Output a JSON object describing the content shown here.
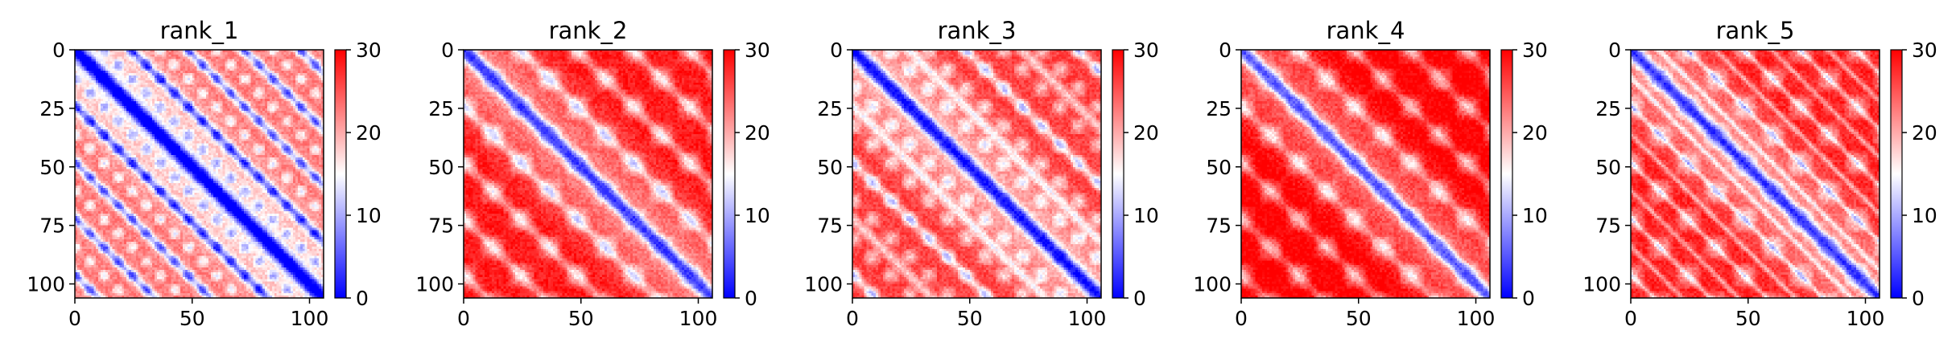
{
  "chart_data": [
    {
      "type": "heatmap",
      "title": "rank_1",
      "xticks": [
        0,
        50,
        100
      ],
      "yticks": [
        0,
        25,
        50,
        75,
        100
      ],
      "xlim": [
        0,
        106
      ],
      "ylim": [
        106,
        0
      ],
      "grid_size": 106,
      "colormap": "bwr",
      "colorbar": {
        "min": 0,
        "max": 30,
        "ticks": [
          0,
          10,
          20,
          30
        ]
      },
      "pattern": {
        "band_period": 24,
        "band_strength": 0.85,
        "blob_period": 12,
        "base_level": 0.5
      }
    },
    {
      "type": "heatmap",
      "title": "rank_2",
      "xticks": [
        0,
        50,
        100
      ],
      "yticks": [
        0,
        25,
        50,
        75,
        100
      ],
      "xlim": [
        0,
        106
      ],
      "ylim": [
        106,
        0
      ],
      "grid_size": 106,
      "colormap": "bwr",
      "colorbar": {
        "min": 0,
        "max": 30,
        "ticks": [
          0,
          10,
          20,
          30
        ]
      },
      "pattern": {
        "band_period": 24,
        "band_strength": 0.45,
        "blob_period": 24,
        "base_level": 0.7
      }
    },
    {
      "type": "heatmap",
      "title": "rank_3",
      "xticks": [
        0,
        50,
        100
      ],
      "yticks": [
        0,
        25,
        50,
        75,
        100
      ],
      "xlim": [
        0,
        106
      ],
      "ylim": [
        106,
        0
      ],
      "grid_size": 106,
      "colormap": "bwr",
      "colorbar": {
        "min": 0,
        "max": 30,
        "ticks": [
          0,
          10,
          20,
          30
        ]
      },
      "pattern": {
        "band_period": 24,
        "band_strength": 0.6,
        "blob_period": 16,
        "base_level": 0.62
      }
    },
    {
      "type": "heatmap",
      "title": "rank_4",
      "xticks": [
        0,
        50,
        100
      ],
      "yticks": [
        0,
        25,
        50,
        75,
        100
      ],
      "xlim": [
        0,
        106
      ],
      "ylim": [
        106,
        0
      ],
      "grid_size": 106,
      "colormap": "bwr",
      "colorbar": {
        "min": 0,
        "max": 30,
        "ticks": [
          0,
          10,
          20,
          30
        ]
      },
      "pattern": {
        "band_period": 24,
        "band_strength": 0.35,
        "blob_period": 24,
        "base_level": 0.76
      }
    },
    {
      "type": "heatmap",
      "title": "rank_5",
      "xticks": [
        0,
        50,
        100
      ],
      "yticks": [
        0,
        25,
        50,
        75,
        100
      ],
      "xlim": [
        0,
        106
      ],
      "ylim": [
        106,
        0
      ],
      "grid_size": 106,
      "colormap": "bwr",
      "colorbar": {
        "min": 0,
        "max": 30,
        "ticks": [
          0,
          10,
          20,
          30
        ]
      },
      "pattern": {
        "band_period": 12,
        "band_strength": 0.55,
        "blob_period": 24,
        "base_level": 0.68
      }
    }
  ]
}
